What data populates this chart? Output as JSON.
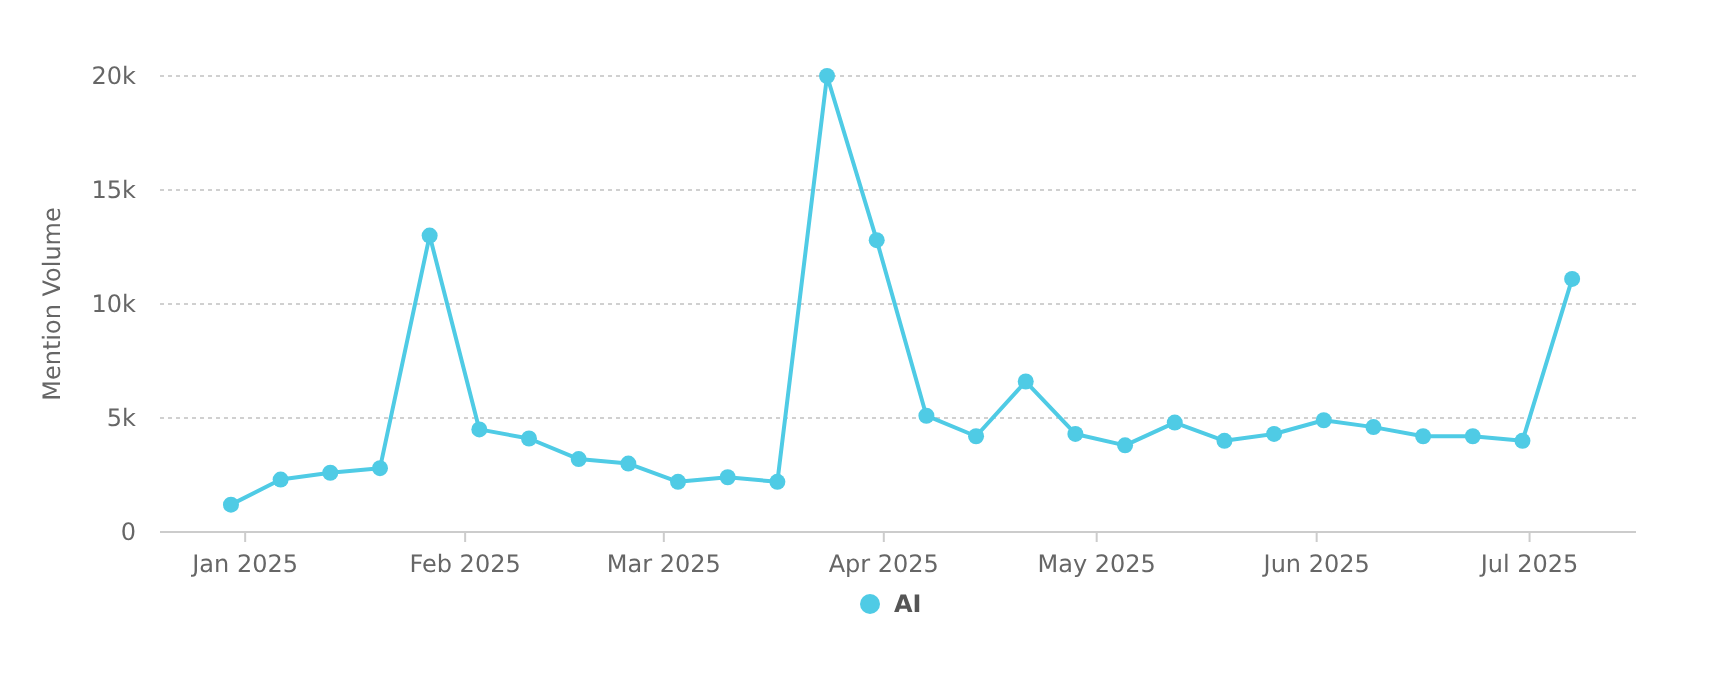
{
  "chart_data": {
    "type": "line",
    "ylabel": "Mention Volume",
    "x": [
      "2024-12-30",
      "2025-01-06",
      "2025-01-13",
      "2025-01-20",
      "2025-01-27",
      "2025-02-03",
      "2025-02-10",
      "2025-02-17",
      "2025-02-24",
      "2025-03-03",
      "2025-03-10",
      "2025-03-17",
      "2025-03-24",
      "2025-03-31",
      "2025-04-07",
      "2025-04-14",
      "2025-04-21",
      "2025-04-28",
      "2025-05-05",
      "2025-05-12",
      "2025-05-19",
      "2025-05-26",
      "2025-06-02",
      "2025-06-09",
      "2025-06-16",
      "2025-06-23",
      "2025-06-30",
      "2025-07-07"
    ],
    "series": [
      {
        "name": "AI",
        "color": "#4fcbe5",
        "values": [
          1200,
          2300,
          2600,
          2800,
          13000,
          4500,
          4100,
          3200,
          3000,
          2200,
          2400,
          2200,
          20000,
          12800,
          5100,
          4200,
          6600,
          4300,
          3800,
          4800,
          4000,
          4300,
          4900,
          4600,
          4200,
          4200,
          4000,
          11100
        ]
      }
    ],
    "xlim": [
      "2024-12-20",
      "2025-07-16"
    ],
    "xticks": [
      {
        "value": "2025-01-01",
        "label": "Jan 2025"
      },
      {
        "value": "2025-02-01",
        "label": "Feb 2025"
      },
      {
        "value": "2025-03-01",
        "label": "Mar 2025"
      },
      {
        "value": "2025-04-01",
        "label": "Apr 2025"
      },
      {
        "value": "2025-05-01",
        "label": "May 2025"
      },
      {
        "value": "2025-06-01",
        "label": "Jun 2025"
      },
      {
        "value": "2025-07-01",
        "label": "Jul 2025"
      }
    ],
    "ylim": [
      0,
      20000
    ],
    "yticks": [
      0,
      {
        "value": 5000,
        "label": "5k"
      },
      {
        "value": 10000,
        "label": "10k"
      },
      {
        "value": 15000,
        "label": "15k"
      },
      {
        "value": 20000,
        "label": "20k"
      }
    ],
    "grid": "y",
    "legend": "bottom",
    "marker": "circle",
    "line_style": "solid"
  }
}
